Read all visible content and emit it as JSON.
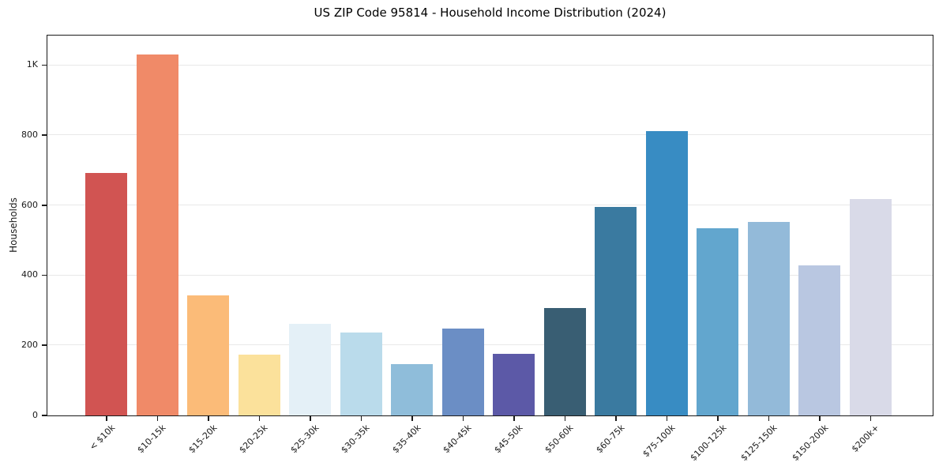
{
  "chart_data": {
    "type": "bar",
    "title": "US ZIP Code 95814 - Household Income Distribution (2024)",
    "xlabel": "",
    "ylabel": "Households",
    "categories": [
      "< $10k",
      "$10-15k",
      "$15-20k",
      "$20-25k",
      "$25-30k",
      "$30-35k",
      "$35-40k",
      "$40-45k",
      "$45-50k",
      "$50-60k",
      "$60-75k",
      "$75-100k",
      "$100-125k",
      "$125-150k",
      "$150-200k",
      "$200k+"
    ],
    "values": [
      692,
      1031,
      342,
      174,
      261,
      237,
      147,
      248,
      176,
      308,
      595,
      813,
      535,
      553,
      428,
      619
    ],
    "bar_colors": [
      "#d15452",
      "#f08a68",
      "#fbbb78",
      "#fbe19b",
      "#e4f0f7",
      "#badbeb",
      "#8fbdda",
      "#6b8ec5",
      "#5c59a7",
      "#395e73",
      "#3a7aa0",
      "#388cc3",
      "#62a6ce",
      "#93bad9",
      "#b9c7e1",
      "#d9dae8"
    ],
    "yticks": {
      "values": [
        0,
        200,
        400,
        600,
        800,
        1000
      ],
      "labels": [
        "0",
        "200",
        "400",
        "600",
        "800",
        "1K"
      ]
    },
    "ylim": [
      0,
      1083
    ],
    "grid": "horizontal",
    "legend": "none",
    "background_color": "#ffffff",
    "spine_color": "#1a1a1a",
    "grid_color": "#e8e8e8"
  }
}
